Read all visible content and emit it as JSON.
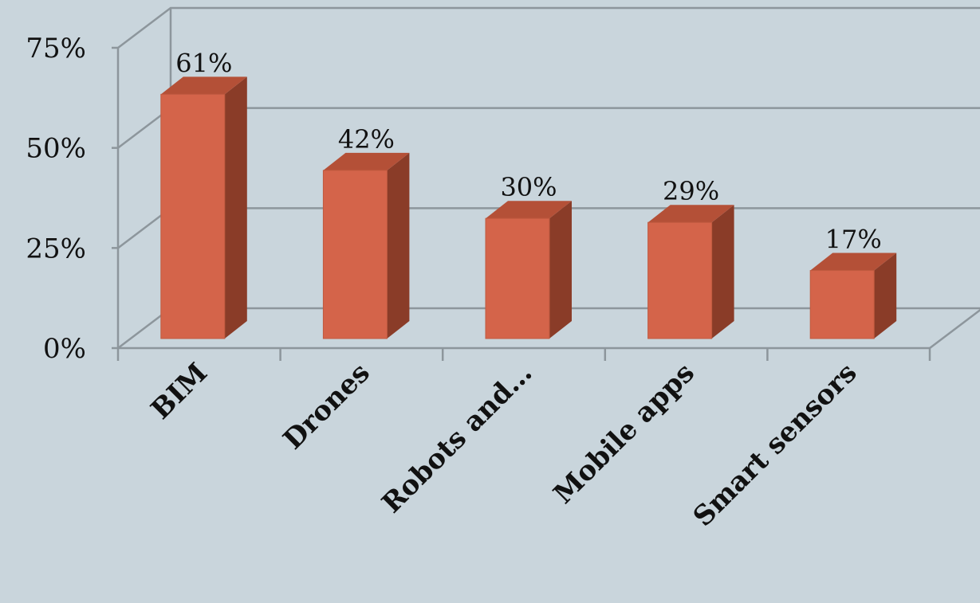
{
  "chart_data": {
    "type": "bar",
    "title": "",
    "xlabel": "",
    "ylabel": "",
    "categories": [
      "BIM",
      "Drones",
      "Robots and…",
      "Mobile apps",
      "Smart sensors"
    ],
    "values": [
      61,
      42,
      30,
      29,
      17
    ],
    "data_labels": [
      "61%",
      "42%",
      "30%",
      "29%",
      "17%"
    ],
    "ylim": [
      0,
      75
    ],
    "yticks": [
      0,
      25,
      50,
      75
    ],
    "ytick_labels": [
      "0%",
      "25%",
      "50%",
      "75%"
    ],
    "grid": true,
    "legend": "none",
    "style": "3d-column",
    "colors": {
      "bar_front": "#d4644a",
      "bar_side": "#8a3c28",
      "bar_top": "#b45037",
      "grid": "#8d969c",
      "background": "#c9d5dc"
    }
  }
}
